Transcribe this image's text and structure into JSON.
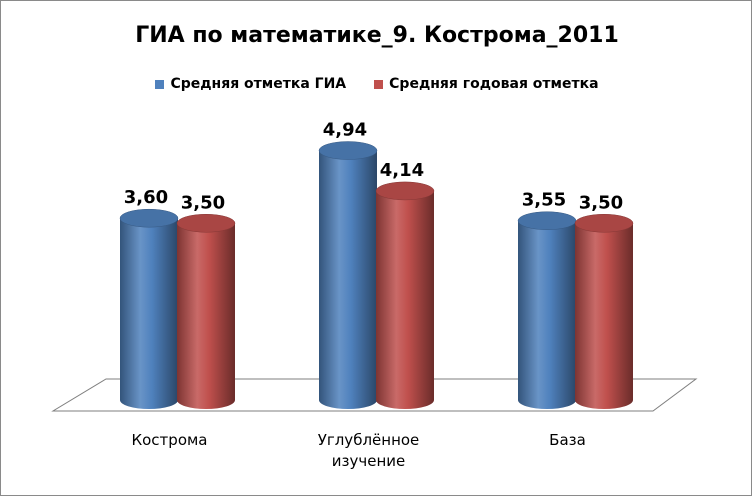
{
  "chart_data": {
    "type": "bar",
    "title": "ГИА по математике_9. Кострома_2011",
    "categories": [
      "Кострома",
      "Углублённое изучение",
      "База"
    ],
    "category_lines": [
      [
        "Кострома"
      ],
      [
        "Углублённое",
        "изучение"
      ],
      [
        "База"
      ]
    ],
    "series": [
      {
        "name": "Средняя отметка ГИА",
        "values": [
          3.6,
          4.94,
          3.55
        ],
        "labels": [
          "3,60",
          "4,94",
          "3,55"
        ],
        "color": "#4f81bd"
      },
      {
        "name": "Средняя годовая отметка",
        "values": [
          3.5,
          4.14,
          3.5
        ],
        "labels": [
          "3,50",
          "4,14",
          "3,50"
        ],
        "color": "#c0504d"
      }
    ],
    "ylim": [
      0,
      6
    ],
    "grid": false,
    "legend_position": "top-center",
    "style": "3d-cylinder"
  }
}
